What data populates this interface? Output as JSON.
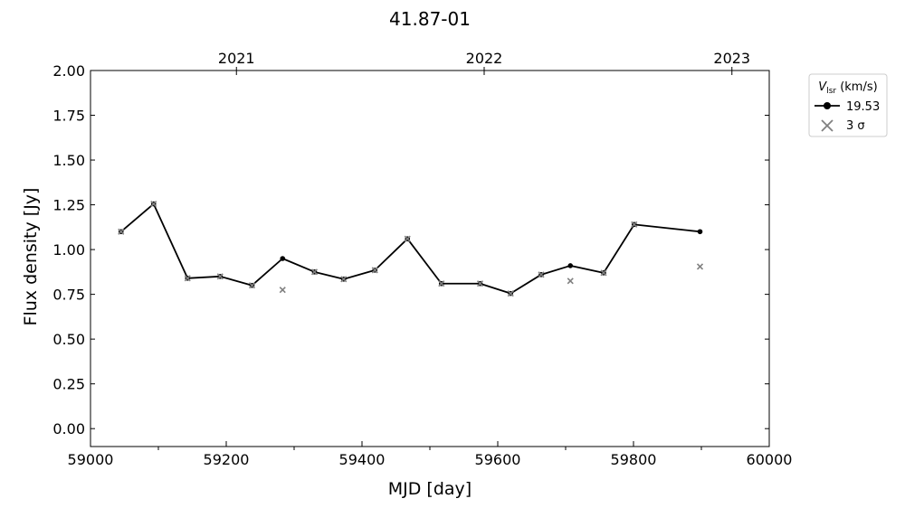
{
  "chart_data": {
    "type": "line",
    "title": "41.87-01",
    "xlabel": "MJD [day]",
    "ylabel": "Flux density [Jy]",
    "xlim": [
      59000,
      60000
    ],
    "ylim": [
      -0.1,
      2.0
    ],
    "xticks": [
      59000,
      59200,
      59400,
      59600,
      59800,
      60000
    ],
    "xtick_labels": [
      "59000",
      "59200",
      "59400",
      "59600",
      "59800",
      "60000"
    ],
    "yticks": [
      0.0,
      0.25,
      0.5,
      0.75,
      1.0,
      1.25,
      1.5,
      1.75,
      2.0
    ],
    "ytick_labels": [
      "0.00",
      "0.25",
      "0.50",
      "0.75",
      "1.00",
      "1.25",
      "1.50",
      "1.75",
      "2.00"
    ],
    "top_axis": {
      "ticks": [
        59215,
        59580,
        59945
      ],
      "labels": [
        "2021",
        "2022",
        "2023"
      ]
    },
    "grid": false,
    "legend": {
      "placement": "outside-right",
      "title_main": "V",
      "title_sub": "lsr",
      "title_unit": " (km/s)",
      "entries": [
        "19.53",
        "3 σ"
      ]
    },
    "series": [
      {
        "name": "19.53",
        "color": "#000000",
        "marker": "circle",
        "x": [
          59045,
          59093,
          59143,
          59191,
          59238,
          59283,
          59330,
          59373,
          59419,
          59467,
          59517,
          59574,
          59619,
          59664,
          59707,
          59756,
          59801,
          59898
        ],
        "y": [
          1.1,
          1.255,
          0.84,
          0.85,
          0.8,
          0.95,
          0.875,
          0.835,
          0.885,
          1.06,
          0.81,
          0.81,
          0.755,
          0.86,
          0.91,
          0.87,
          1.14,
          1.1
        ]
      },
      {
        "name": "3 σ",
        "color": "#808080",
        "marker": "x",
        "x": [
          59045,
          59093,
          59143,
          59191,
          59238,
          59283,
          59330,
          59373,
          59419,
          59467,
          59517,
          59574,
          59619,
          59664,
          59707,
          59756,
          59801,
          59898
        ],
        "y": [
          1.1,
          1.255,
          0.84,
          0.85,
          0.8,
          0.775,
          0.875,
          0.835,
          0.885,
          1.06,
          0.81,
          0.81,
          0.755,
          0.86,
          0.825,
          0.87,
          1.14,
          0.905
        ]
      }
    ]
  }
}
